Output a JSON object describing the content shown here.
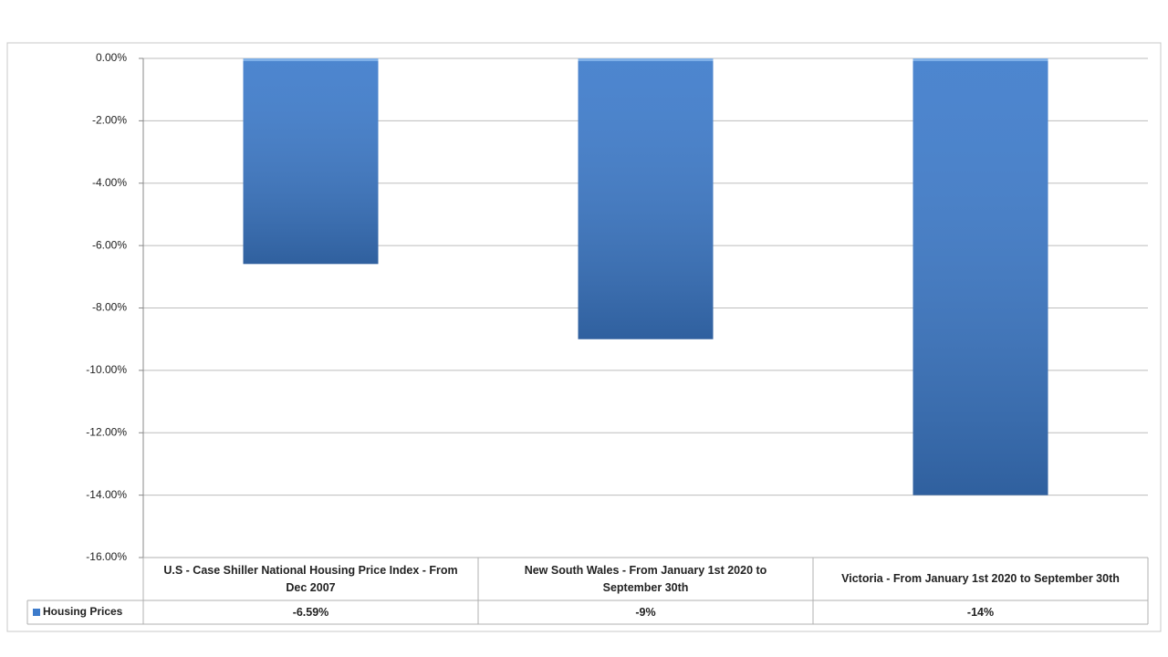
{
  "chart_data": {
    "type": "bar",
    "categories": [
      "U.S  - Case Shiller National Housing Price Index - From Dec 2007",
      "New South Wales - From January 1st 2020 to September 30th",
      "Victoria  - From January 1st 2020 to September 30th"
    ],
    "series": [
      {
        "name": "Housing Prices",
        "color": "#3d7bcb",
        "values": [
          -6.59,
          -9,
          -14
        ],
        "value_labels": [
          "-6.59%",
          "-9%",
          "-14%"
        ]
      }
    ],
    "ylim": [
      -16,
      0
    ],
    "yticks": [
      {
        "value": -16,
        "label": "-16.00%"
      },
      {
        "value": -14,
        "label": "-14.00%"
      },
      {
        "value": -12,
        "label": "-12.00%"
      },
      {
        "value": -10,
        "label": "-10.00%"
      },
      {
        "value": -8,
        "label": "-8.00%"
      },
      {
        "value": -6,
        "label": "-6.00%"
      },
      {
        "value": -4,
        "label": "-4.00%"
      },
      {
        "value": -2,
        "label": "-2.00%"
      },
      {
        "value": 0,
        "label": "0.00%"
      }
    ],
    "grid": true
  }
}
